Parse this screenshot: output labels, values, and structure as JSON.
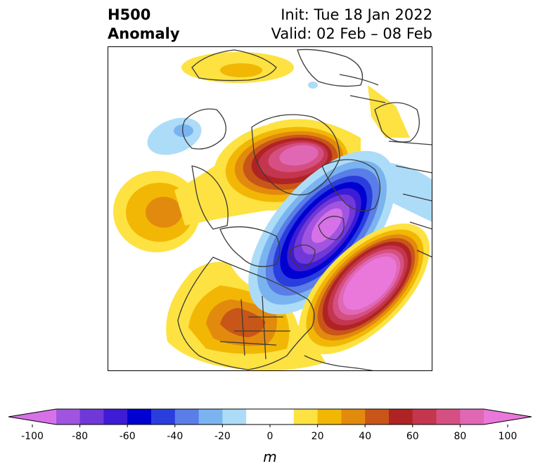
{
  "header": {
    "title_line1": "H500",
    "title_line2": "Anomaly",
    "init": "Init: Tue 18 Jan 2022",
    "valid": "Valid: 02 Feb – 08 Feb"
  },
  "colorbar": {
    "unit": "m",
    "range": [
      -100,
      100
    ],
    "step": 10,
    "colors": [
      "#d771e8",
      "#a054e0",
      "#7038d8",
      "#3e1bd4",
      "#0000d0",
      "#2a3ede",
      "#5a7de8",
      "#7ab4f0",
      "#addcf8",
      "#ffffff",
      "#ffffff",
      "#fde242",
      "#f2b705",
      "#e28a0e",
      "#c85618",
      "#b02325",
      "#c4364e",
      "#d54f82",
      "#e067b4",
      "#e978da"
    ],
    "ticks": [
      "-100",
      "-80",
      "-60",
      "-40",
      "-20",
      "0",
      "20",
      "40",
      "60",
      "80",
      "100"
    ]
  },
  "map": {
    "region": "North America / Arctic / North Atlantic",
    "field": "500 hPa geopotential height anomaly"
  }
}
